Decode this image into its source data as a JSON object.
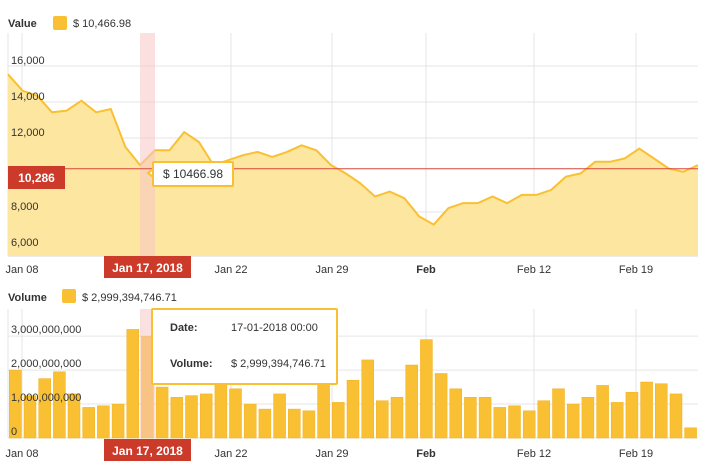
{
  "value_panel": {
    "label": "Value",
    "legend_text": "$ 10,466.98",
    "cursor_label": "10,286",
    "tooltip": "$ 10466.98"
  },
  "volume_panel": {
    "label": "Volume",
    "legend_text": "$ 2,999,394,746.71",
    "tooltip": {
      "date_label": "Date:",
      "date_value": "17-01-2018 00:00",
      "volume_label": "Volume:",
      "volume_value": "$ 2,999,394,746.71"
    }
  },
  "cursor_date_label": "Jan 17, 2018",
  "colors": {
    "fill": "#fde69f",
    "line": "#f9c033",
    "bar": "#f9c033",
    "bar_stroke": "#f0b020",
    "cursor_badge": "#cc3a2a",
    "cursor_band": "#f7c7c7",
    "cursor_line": "#d9463a",
    "grid": "#e6e6e6"
  },
  "chart_data": [
    {
      "type": "area",
      "title": "Value",
      "x_tick_labels": [
        "Jan 08",
        "Jan 22",
        "Jan 29",
        "Feb",
        "Feb 12",
        "Feb 19"
      ],
      "y_tick_labels": [
        "16,000",
        "14,000",
        "12,000",
        "8,000",
        "6,000"
      ],
      "ylim": [
        5000,
        18500
      ],
      "grid": true,
      "highlight_date": "Jan 17, 2018",
      "highlight_value": 10466.98,
      "crosshair_value": 10286,
      "series": [
        {
          "values": [
            16000,
            15000,
            14700,
            13700,
            13800,
            14400,
            13700,
            13900,
            11600,
            10500,
            11400,
            11400,
            12500,
            11900,
            10500,
            10800,
            11100,
            11300,
            11000,
            11300,
            11700,
            11400,
            10500,
            10000,
            9400,
            8600,
            8900,
            8500,
            7400,
            6900,
            7900,
            8200,
            8200,
            8600,
            8200,
            8700,
            8700,
            9000,
            9800,
            10000,
            10700,
            10700,
            10900,
            11500,
            10900,
            10300,
            10100,
            10500
          ]
        }
      ]
    },
    {
      "type": "bar",
      "title": "Volume",
      "x_tick_labels": [
        "Jan 08",
        "Jan 22",
        "Jan 29",
        "Feb",
        "Feb 12",
        "Feb 19"
      ],
      "y_tick_labels": [
        "3,000,000,000",
        "2,000,000,000",
        "1,000,000,000",
        "0"
      ],
      "ylim": [
        0,
        3800000000
      ],
      "grid": true,
      "highlight_date": "Jan 17, 2018",
      "highlight_value": 2999394746.71,
      "series": [
        {
          "values": [
            2000000000,
            1250000000,
            1750000000,
            1950000000,
            1300000000,
            900000000,
            950000000,
            1000000000,
            3200000000,
            2999394746.71,
            1500000000,
            1200000000,
            1250000000,
            1300000000,
            1600000000,
            1450000000,
            1000000000,
            850000000,
            1300000000,
            850000000,
            800000000,
            1550000000,
            1050000000,
            1700000000,
            2300000000,
            1100000000,
            1200000000,
            2150000000,
            2900000000,
            1900000000,
            1450000000,
            1200000000,
            1200000000,
            900000000,
            950000000,
            800000000,
            1100000000,
            1450000000,
            1000000000,
            1200000000,
            1550000000,
            1050000000,
            1350000000,
            1650000000,
            1600000000,
            1300000000,
            300000000
          ]
        }
      ]
    }
  ]
}
